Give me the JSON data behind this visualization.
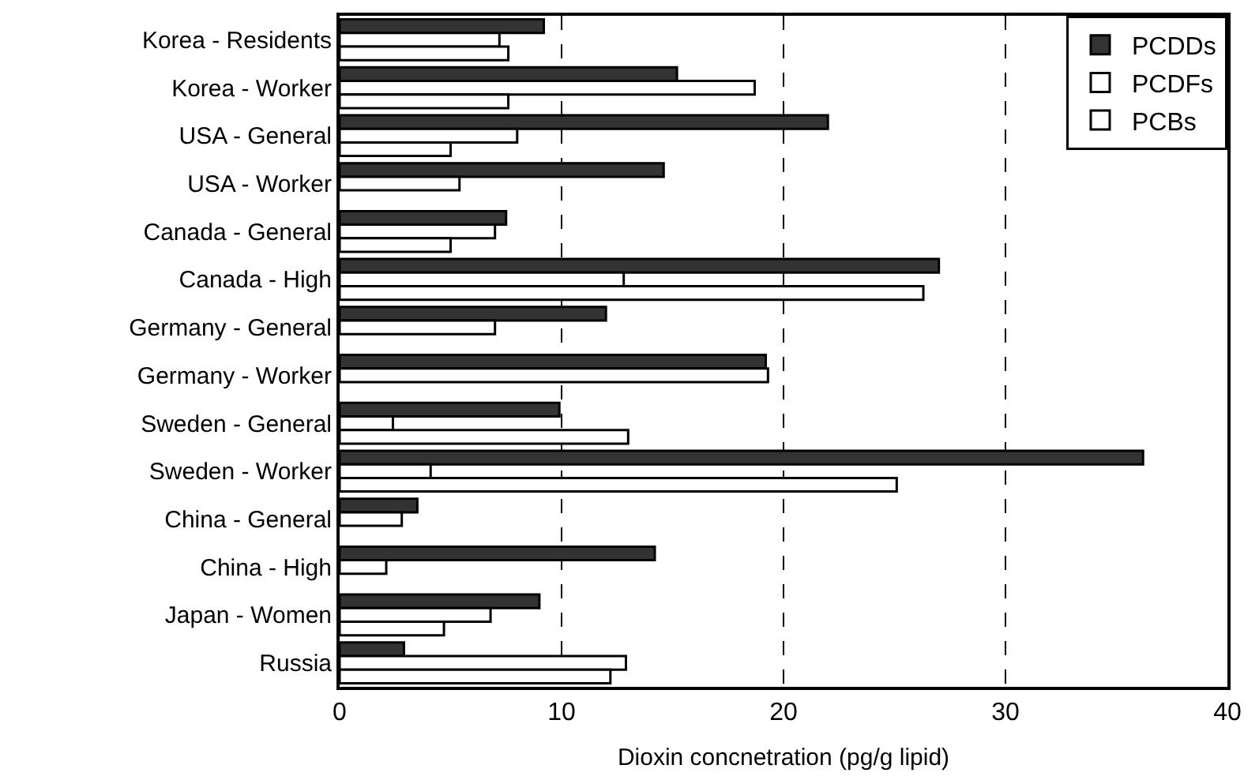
{
  "chart_data": {
    "type": "bar",
    "orientation": "horizontal",
    "xlabel": "Dioxin concnetration (pg/g lipid)",
    "categories": [
      "Korea - Residents",
      "Korea - Worker",
      "USA - General",
      "USA - Worker",
      "Canada - General",
      "Canada - High",
      "Germany - General",
      "Germany - Worker",
      "Sweden - General",
      "Sweden - Worker",
      "China - General",
      "China - High",
      "Japan - Women",
      "Russia"
    ],
    "series": [
      {
        "name": "PCDDs",
        "color": "#333333",
        "values": [
          9.2,
          15.2,
          22.0,
          14.6,
          7.5,
          27.0,
          12.0,
          19.2,
          9.9,
          36.2,
          3.5,
          14.2,
          9.0,
          2.9
        ]
      },
      {
        "name": "PCDFs",
        "color": "#ffffff",
        "values": [
          7.2,
          18.7,
          8.0,
          5.4,
          7.0,
          12.8,
          7.0,
          19.3,
          2.4,
          4.1,
          2.8,
          2.1,
          6.8,
          12.9
        ]
      },
      {
        "name": "PCBs",
        "color": "#ffffff",
        "values": [
          7.6,
          7.6,
          5.0,
          null,
          5.0,
          26.3,
          null,
          null,
          13.0,
          25.1,
          null,
          null,
          4.7,
          12.2
        ]
      }
    ],
    "xlim": [
      0,
      40
    ],
    "xticks": [
      0,
      10,
      20,
      30,
      40
    ],
    "grid": "x",
    "legend": "top right"
  }
}
